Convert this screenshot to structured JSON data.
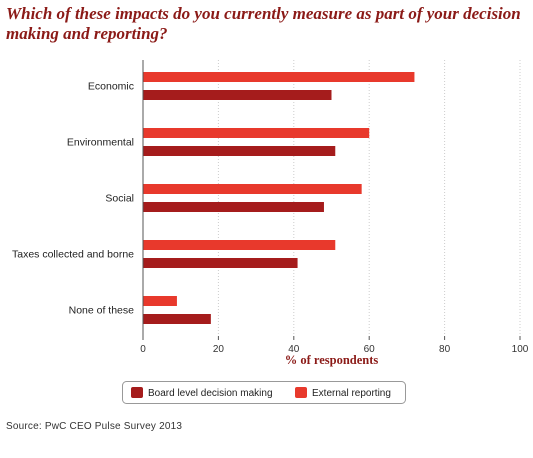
{
  "title": "Which of these impacts do you currently measure as part of your decision making and reporting?",
  "source": "Source:  PwC CEO Pulse Survey 2013",
  "colors": {
    "title": "#8b1a17",
    "board": "#a51c1c",
    "external": "#e8392c",
    "grid": "#cccccc",
    "axis": "#555555"
  },
  "chart_data": {
    "type": "bar",
    "orientation": "horizontal",
    "categories": [
      "Economic",
      "Environmental",
      "Social",
      "Taxes collected and borne",
      "None of these"
    ],
    "series": [
      {
        "name": "External reporting",
        "values": [
          72,
          60,
          58,
          51,
          9
        ]
      },
      {
        "name": "Board level decision making",
        "values": [
          50,
          51,
          48,
          41,
          18
        ]
      }
    ],
    "xlabel": "% of respondents",
    "xlim": [
      0,
      100
    ],
    "xticks": [
      0,
      20,
      40,
      60,
      80,
      100
    ],
    "grid": true,
    "legend": {
      "position": "bottom",
      "entries": [
        "Board level decision making",
        "External reporting"
      ]
    }
  }
}
